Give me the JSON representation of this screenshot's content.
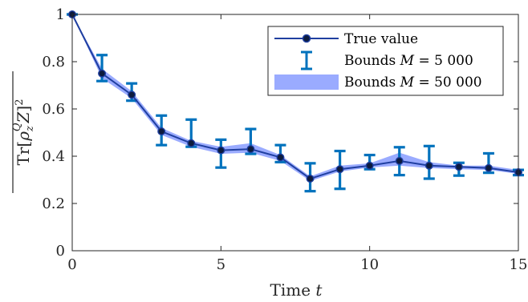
{
  "chart_data": {
    "type": "line",
    "xlabel": "Time t",
    "ylabel": "Tr[ρzQZ]²",
    "xlim": [
      0,
      15
    ],
    "ylim": [
      0,
      1
    ],
    "xticks": [
      0,
      5,
      10,
      15
    ],
    "yticks": [
      0,
      0.2,
      0.4,
      0.6,
      0.8,
      1
    ],
    "xtick_labels": [
      "0",
      "5",
      "10",
      "15"
    ],
    "ytick_labels": [
      "0",
      "0.2",
      "0.4",
      "0.6",
      "0.8",
      "1"
    ],
    "grid": false,
    "legend_position": "top-right",
    "x": [
      0,
      1,
      2,
      3,
      4,
      5,
      6,
      7,
      8,
      9,
      10,
      11,
      12,
      13,
      14,
      15
    ],
    "series": [
      {
        "name": "True value",
        "kind": "line-markers",
        "color": "#1f3fa0",
        "y": [
          1.0,
          0.75,
          0.66,
          0.505,
          0.455,
          0.425,
          0.43,
          0.395,
          0.305,
          0.345,
          0.36,
          0.38,
          0.36,
          0.355,
          0.35,
          0.332
        ]
      },
      {
        "name": "Bounds M = 5 000",
        "kind": "errorbar",
        "color": "#0072bd",
        "lower": [
          1.0,
          0.718,
          0.635,
          0.447,
          0.44,
          0.352,
          0.41,
          0.375,
          0.252,
          0.262,
          0.345,
          0.32,
          0.305,
          0.318,
          0.33,
          0.32
        ],
        "upper": [
          1.0,
          0.828,
          0.708,
          0.572,
          0.555,
          0.47,
          0.515,
          0.447,
          0.37,
          0.422,
          0.405,
          0.438,
          0.443,
          0.372,
          0.412,
          0.342
        ]
      },
      {
        "name": "Bounds M = 50 000",
        "kind": "band",
        "color": "#9aabff",
        "lower": [
          1.0,
          0.73,
          0.645,
          0.49,
          0.44,
          0.41,
          0.415,
          0.38,
          0.295,
          0.335,
          0.352,
          0.36,
          0.35,
          0.345,
          0.342,
          0.325
        ],
        "upper": [
          1.0,
          0.77,
          0.675,
          0.52,
          0.465,
          0.44,
          0.455,
          0.405,
          0.315,
          0.36,
          0.37,
          0.415,
          0.375,
          0.36,
          0.36,
          0.342
        ]
      }
    ],
    "legend": {
      "entries": [
        {
          "prefix": "True value",
          "italic": "",
          "suffix": ""
        },
        {
          "prefix": "Bounds ",
          "italic": "M",
          "suffix": " = 5 000"
        },
        {
          "prefix": "Bounds ",
          "italic": "M",
          "suffix": " = 50 000"
        }
      ]
    },
    "axis_text": {
      "x_prefix": "Time ",
      "x_var": "t",
      "y_tr": "Tr[",
      "y_rho": "ρ",
      "y_sub": "z",
      "y_sup": "Q",
      "y_Z": "Z",
      "y_close": "]",
      "y_pow": "2"
    }
  }
}
